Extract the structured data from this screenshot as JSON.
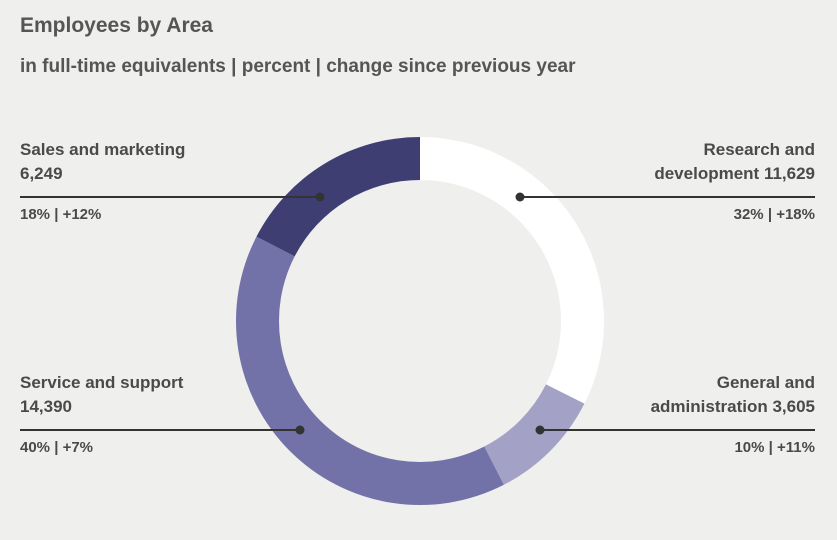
{
  "chart_data": {
    "type": "donut",
    "title": "Employees by Area",
    "subtitle": "in full-time equivalents | percent | change since previous year",
    "categories": [
      "Research and development",
      "General and administration",
      "Service and support",
      "Sales and marketing"
    ],
    "values": [
      11629,
      3605,
      14390,
      6249
    ],
    "value_labels": [
      "11,629",
      "3,605",
      "14,390",
      "6,249"
    ],
    "percent_labels": [
      "32%",
      "10%",
      "40%",
      "18%"
    ],
    "change_labels": [
      "+18%",
      "+11%",
      "+7%",
      "+12%"
    ],
    "separator": "|",
    "colors": [
      "#ffffff",
      "#a3a2c6",
      "#7372a8",
      "#3f3e72"
    ]
  }
}
